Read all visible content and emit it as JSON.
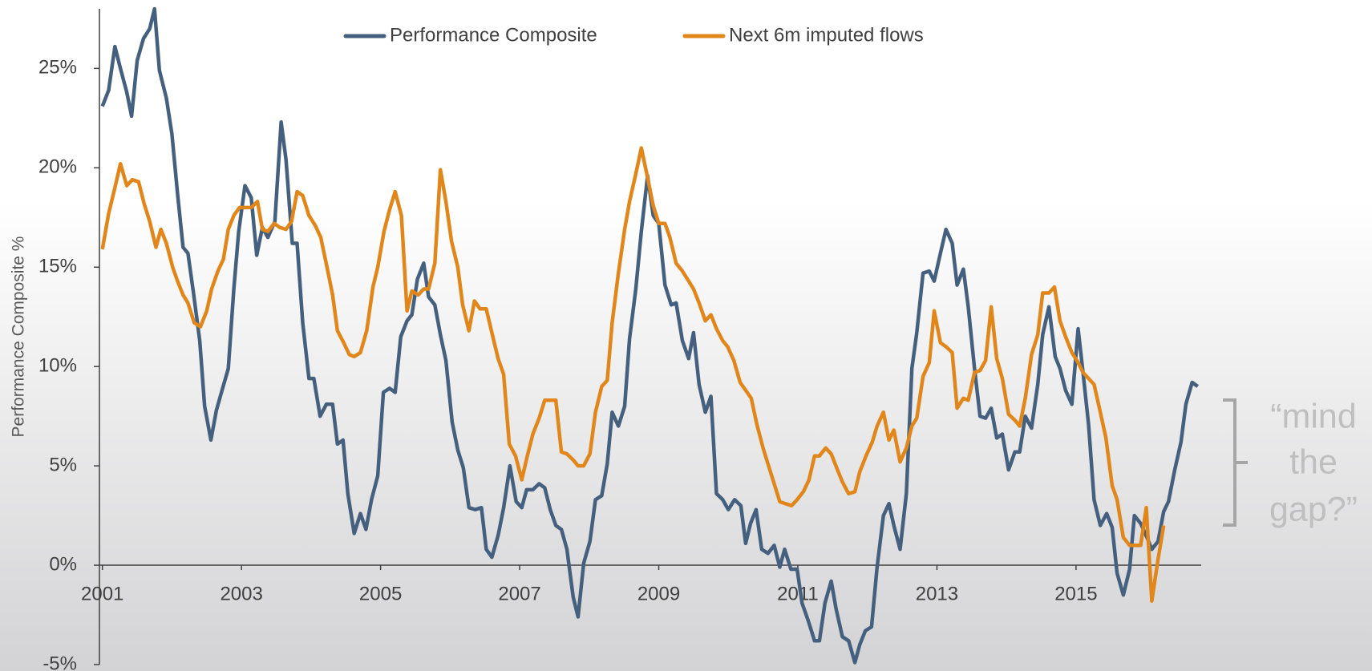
{
  "chart_data": {
    "type": "line",
    "y_axis_label": "Performance  Composite %",
    "annotation": [
      "“mind",
      "the",
      "gap?”"
    ],
    "xlim": [
      2001,
      2016.8
    ],
    "xticks": [
      2001,
      2003,
      2005,
      2007,
      2009,
      2011,
      2013,
      2015
    ],
    "ylim": [
      -5,
      28
    ],
    "yticks": [
      {
        "value": -5,
        "label": "-5%"
      },
      {
        "value": 0,
        "label": "0%"
      },
      {
        "value": 5,
        "label": "5%"
      },
      {
        "value": 10,
        "label": "10%"
      },
      {
        "value": 15,
        "label": "15%"
      },
      {
        "value": 20,
        "label": "20%"
      },
      {
        "value": 25,
        "label": "25%"
      }
    ],
    "legend": "top",
    "series": [
      {
        "name": "Performance Composite",
        "color": "#44607e",
        "x": [
          2001.0,
          2001.09,
          2001.18,
          2001.26,
          2001.35,
          2001.42,
          2001.5,
          2001.59,
          2001.68,
          2001.75,
          2001.82,
          2001.92,
          2002.0,
          2002.08,
          2002.16,
          2002.23,
          2002.31,
          2002.4,
          2002.47,
          2002.56,
          2002.64,
          2002.72,
          2002.81,
          2002.89,
          2002.96,
          2003.05,
          2003.14,
          2003.22,
          2003.3,
          2003.38,
          2003.48,
          2003.57,
          2003.64,
          2003.73,
          2003.8,
          2003.88,
          2003.97,
          2004.04,
          2004.13,
          2004.22,
          2004.31,
          2004.38,
          2004.46,
          2004.53,
          2004.62,
          2004.71,
          2004.79,
          2004.87,
          2004.96,
          2005.04,
          2005.13,
          2005.21,
          2005.29,
          2005.38,
          2005.45,
          2005.53,
          2005.62,
          2005.69,
          2005.78,
          2005.86,
          2005.94,
          2006.03,
          2006.11,
          2006.19,
          2006.27,
          2006.36,
          2006.45,
          2006.52,
          2006.6,
          2006.69,
          2006.77,
          2006.86,
          2006.95,
          2007.03,
          2007.1,
          2007.19,
          2007.28,
          2007.36,
          2007.44,
          2007.52,
          2007.6,
          2007.68,
          2007.77,
          2007.84,
          2007.92,
          2008.01,
          2008.09,
          2008.18,
          2008.26,
          2008.33,
          2008.42,
          2008.51,
          2008.58,
          2008.67,
          2008.75,
          2008.84,
          2008.92,
          2009.0,
          2009.09,
          2009.18,
          2009.25,
          2009.34,
          2009.43,
          2009.5,
          2009.58,
          2009.67,
          2009.75,
          2009.83,
          2009.92,
          2010.0,
          2010.09,
          2010.18,
          2010.25,
          2010.32,
          2010.4,
          2010.48,
          2010.57,
          2010.66,
          2010.74,
          2010.81,
          2010.9,
          2010.99,
          2011.06,
          2011.15,
          2011.24,
          2011.31,
          2011.39,
          2011.48,
          2011.55,
          2011.64,
          2011.73,
          2011.82,
          2011.89,
          2011.97,
          2012.06,
          2012.14,
          2012.23,
          2012.31,
          2012.38,
          2012.47,
          2012.56,
          2012.64,
          2012.71,
          2012.8,
          2012.89,
          2012.96,
          2013.05,
          2013.13,
          2013.22,
          2013.29,
          2013.38,
          2013.45,
          2013.54,
          2013.62,
          2013.7,
          2013.78,
          2013.86,
          2013.94,
          2014.03,
          2014.12,
          2014.19,
          2014.27,
          2014.36,
          2014.45,
          2014.52,
          2014.61,
          2014.7,
          2014.77,
          2014.85,
          2014.94,
          2015.03,
          2015.1,
          2015.18,
          2015.26,
          2015.35,
          2015.44,
          2015.52,
          2015.59,
          2015.68,
          2015.77,
          2015.84,
          2015.93,
          2016.02,
          2016.09,
          2016.18,
          2016.26,
          2016.33,
          2016.42,
          2016.51,
          2016.58,
          2016.67,
          2016.75
        ],
        "values": [
          23.1,
          23.9,
          26.1,
          25,
          23.8,
          22.6,
          25.4,
          26.5,
          27,
          28,
          24.9,
          23.5,
          21.7,
          18.7,
          16,
          15.7,
          13.7,
          11.3,
          8,
          6.3,
          7.8,
          8.8,
          9.9,
          13.9,
          16.8,
          19.1,
          18.5,
          15.6,
          17,
          16.5,
          17.3,
          22.3,
          20.4,
          16.2,
          16.2,
          12.2,
          9.4,
          9.4,
          7.5,
          8.1,
          8.1,
          6.1,
          6.3,
          3.6,
          1.6,
          2.6,
          1.8,
          3.3,
          4.5,
          8.7,
          8.9,
          8.7,
          11.5,
          12.3,
          12.6,
          14.4,
          15.2,
          13.5,
          13.1,
          11.6,
          10.3,
          7.2,
          5.8,
          4.9,
          2.9,
          2.8,
          2.9,
          0.8,
          0.4,
          1.5,
          2.9,
          5,
          3.2,
          2.9,
          3.8,
          3.8,
          4.1,
          3.9,
          2.8,
          2,
          1.8,
          0.8,
          -1.6,
          -2.6,
          0.1,
          1.2,
          3.3,
          3.5,
          5.1,
          7.7,
          7,
          8,
          11.4,
          13.9,
          16.8,
          19.6,
          17.6,
          17.2,
          14.1,
          13.1,
          13.2,
          11.3,
          10.4,
          11.7,
          9.1,
          7.7,
          8.5,
          3.6,
          3.3,
          2.8,
          3.3,
          3,
          1.1,
          2.1,
          2.8,
          0.8,
          0.6,
          1,
          -0.1,
          0.8,
          -0.2,
          -0.2,
          -1.9,
          -2.8,
          -3.8,
          -3.8,
          -1.9,
          -0.8,
          -2.2,
          -3.6,
          -3.8,
          -4.9,
          -4,
          -3.3,
          -3.1,
          -0.1,
          2.5,
          3.1,
          2,
          0.8,
          3.6,
          9.9,
          11.7,
          14.7,
          14.8,
          14.3,
          15.7,
          16.9,
          16.2,
          14.1,
          14.9,
          13,
          9.9,
          7.5,
          7.4,
          7.9,
          6.4,
          6.6,
          4.8,
          5.7,
          5.7,
          7.5,
          6.9,
          9.1,
          11.6,
          13,
          10.5,
          9.9,
          8.8,
          8.1,
          11.9,
          9.7,
          7.1,
          3.3,
          2,
          2.6,
          1.9,
          -0.4,
          -1.5,
          -0.2,
          2.5,
          2.1,
          1.4,
          0.8,
          1.2,
          2.7,
          3.2,
          4.8,
          6.2,
          8.1,
          9.2,
          9
        ]
      },
      {
        "name": "Next 6m imputed flows",
        "color": "#e0861a",
        "x": [
          2001.0,
          2001.09,
          2001.18,
          2001.26,
          2001.35,
          2001.43,
          2001.52,
          2001.6,
          2001.68,
          2001.77,
          2001.84,
          2001.92,
          2002.01,
          2002.08,
          2002.16,
          2002.23,
          2002.32,
          2002.41,
          2002.5,
          2002.57,
          2002.66,
          2002.74,
          2002.81,
          2002.89,
          2002.97,
          2003.06,
          2003.14,
          2003.23,
          2003.3,
          2003.38,
          2003.47,
          2003.55,
          2003.64,
          2003.72,
          2003.8,
          2003.88,
          2003.97,
          2004.06,
          2004.14,
          2004.23,
          2004.31,
          2004.38,
          2004.47,
          2004.55,
          2004.62,
          2004.71,
          2004.8,
          2004.89,
          2004.96,
          2005.05,
          2005.13,
          2005.21,
          2005.3,
          2005.38,
          2005.45,
          2005.54,
          2005.62,
          2005.69,
          2005.78,
          2005.86,
          2005.94,
          2006.02,
          2006.11,
          2006.18,
          2006.27,
          2006.35,
          2006.43,
          2006.52,
          2006.6,
          2006.69,
          2006.77,
          2006.85,
          2006.94,
          2007.03,
          2007.11,
          2007.19,
          2007.28,
          2007.36,
          2007.44,
          2007.52,
          2007.6,
          2007.68,
          2007.77,
          2007.84,
          2007.92,
          2008.01,
          2008.09,
          2008.18,
          2008.26,
          2008.33,
          2008.42,
          2008.51,
          2008.58,
          2008.67,
          2008.75,
          2008.84,
          2008.92,
          2009.0,
          2009.09,
          2009.16,
          2009.25,
          2009.34,
          2009.43,
          2009.5,
          2009.58,
          2009.67,
          2009.75,
          2009.83,
          2009.92,
          2009.99,
          2010.08,
          2010.17,
          2010.25,
          2010.33,
          2010.41,
          2010.5,
          2010.57,
          2010.66,
          2010.74,
          2010.82,
          2010.91,
          2010.99,
          2011.08,
          2011.16,
          2011.24,
          2011.31,
          2011.4,
          2011.48,
          2011.57,
          2011.64,
          2011.73,
          2011.82,
          2011.89,
          2011.98,
          2012.07,
          2012.14,
          2012.23,
          2012.31,
          2012.38,
          2012.47,
          2012.56,
          2012.64,
          2012.71,
          2012.8,
          2012.89,
          2012.96,
          2013.05,
          2013.13,
          2013.22,
          2013.29,
          2013.38,
          2013.45,
          2013.54,
          2013.62,
          2013.7,
          2013.78,
          2013.86,
          2013.94,
          2014.03,
          2014.12,
          2014.19,
          2014.27,
          2014.36,
          2014.45,
          2014.52,
          2014.61,
          2014.69,
          2014.77,
          2014.85,
          2014.94,
          2015.03,
          2015.1,
          2015.18,
          2015.26,
          2015.35,
          2015.43,
          2015.52,
          2015.59,
          2015.68,
          2015.77,
          2015.84,
          2015.93,
          2016.01,
          2016.09,
          2016.18,
          2016.26
        ],
        "values": [
          15.9,
          17.7,
          19,
          20.2,
          19.1,
          19.4,
          19.3,
          18.2,
          17.3,
          16,
          16.9,
          16.2,
          15,
          14.3,
          13.6,
          13.2,
          12.2,
          12,
          12.8,
          13.9,
          14.8,
          15.4,
          16.9,
          17.6,
          18,
          18,
          18,
          18.3,
          16.9,
          16.8,
          17.2,
          17,
          16.9,
          17.3,
          18.8,
          18.6,
          17.6,
          17.1,
          16.5,
          15,
          13.6,
          11.8,
          11.2,
          10.6,
          10.5,
          10.7,
          11.8,
          14,
          15,
          16.8,
          17.9,
          18.8,
          17.6,
          12.8,
          13.8,
          13.6,
          13.9,
          13.9,
          15.2,
          19.9,
          18.3,
          16.3,
          15,
          13.1,
          11.8,
          13.3,
          12.9,
          12.9,
          11.7,
          10.4,
          9.6,
          6.1,
          5.5,
          4.3,
          5.5,
          6.6,
          7.4,
          8.3,
          8.3,
          8.3,
          5.7,
          5.6,
          5.3,
          5,
          5,
          5.6,
          7.7,
          9,
          9.3,
          12.2,
          14.7,
          16.9,
          18.3,
          19.7,
          21,
          19.5,
          18.1,
          17.2,
          17.2,
          16.5,
          15.2,
          14.8,
          14.3,
          13.9,
          13.2,
          12.3,
          12.6,
          11.9,
          11.3,
          11,
          10.3,
          9.2,
          8.8,
          8.4,
          7.1,
          5.9,
          5.1,
          4.1,
          3.2,
          3.1,
          3,
          3.3,
          3.7,
          4.3,
          5.5,
          5.5,
          5.9,
          5.6,
          4.8,
          4.2,
          3.6,
          3.7,
          4.7,
          5.5,
          6.2,
          7,
          7.7,
          6.3,
          6.8,
          5.2,
          5.9,
          7,
          7.4,
          9.5,
          10.2,
          12.8,
          11.2,
          11,
          10.7,
          7.9,
          8.4,
          8.3,
          9.7,
          9.8,
          10.3,
          13,
          10.4,
          9.4,
          7.6,
          7.3,
          7,
          8.4,
          10.6,
          11.6,
          13.7,
          13.7,
          14,
          12.3,
          11.5,
          10.7,
          10.2,
          9.7,
          9.4,
          9.1,
          7.7,
          6.4,
          4,
          3.3,
          1.4,
          1,
          1,
          1,
          2.9,
          -1.8,
          0.3,
          2
        ]
      }
    ]
  }
}
